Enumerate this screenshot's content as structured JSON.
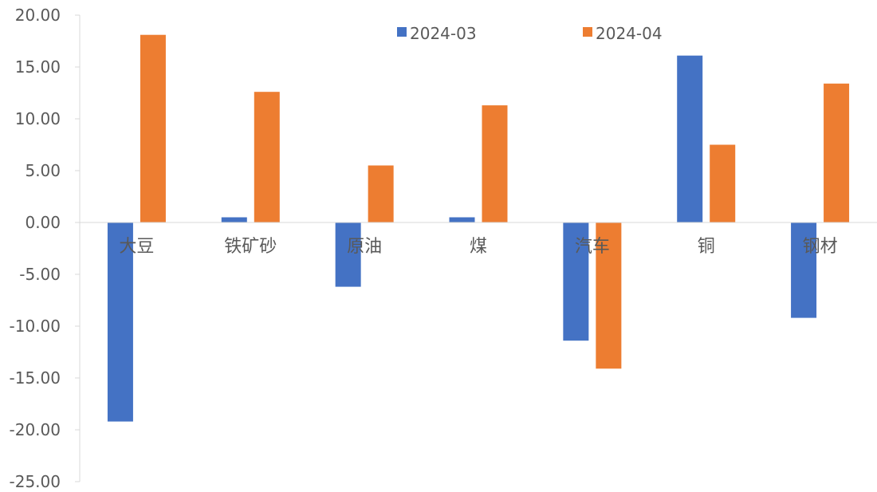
{
  "chart_data": {
    "type": "bar",
    "title": "",
    "xlabel": "",
    "ylabel": "",
    "ylim": [
      -25,
      20
    ],
    "ytick_step": 5,
    "ytick_labels": [
      "20.00",
      "15.00",
      "10.00",
      "5.00",
      "0.00",
      "-5.00",
      "-10.00",
      "-15.00",
      "-20.00",
      "-25.00"
    ],
    "grid": false,
    "legend_position": "top-center",
    "categories": [
      "大豆",
      "铁矿砂",
      "原油",
      "煤",
      "汽车",
      "铜",
      "钢材"
    ],
    "series": [
      {
        "name": "2024-03",
        "color": "#4472C4",
        "values": [
          -19.2,
          0.5,
          -6.2,
          0.5,
          -11.4,
          16.1,
          -9.2
        ]
      },
      {
        "name": "2024-04",
        "color": "#ED7D31",
        "values": [
          18.1,
          12.6,
          5.5,
          11.3,
          -14.1,
          7.5,
          13.4
        ]
      }
    ]
  }
}
